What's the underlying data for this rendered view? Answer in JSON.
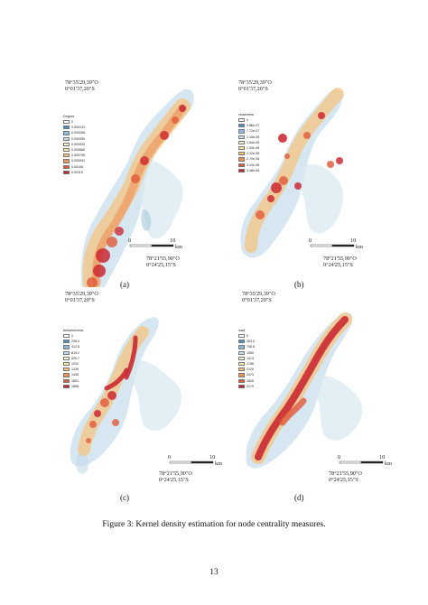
{
  "panels": [
    {
      "id": "a",
      "label": "(a)",
      "coord_top": [
        "78°35'29,39\"O",
        "0°01'37,20\"S"
      ],
      "coord_bottom": [
        "78°21'55,90\"O",
        "0°24'25,15\"S"
      ],
      "legend_title": "Degree",
      "legend_values": [
        "0",
        "0.000133",
        "0.000266",
        "0.000399",
        "0.000533",
        "0.000666",
        "0.000799",
        "0.000932",
        "0.00106",
        "0.00119"
      ],
      "scale": {
        "start": "0",
        "end": "10",
        "unit": "km"
      }
    },
    {
      "id": "b",
      "label": "(b)",
      "coord_top": [
        "78°35'29,39\"O",
        "0°01'37,20\"S"
      ],
      "coord_bottom": [
        "78°21'55,90\"O",
        "0°24'25,15\"S"
      ],
      "legend_title": "closeness",
      "legend_values": [
        "0",
        "3.86e-07",
        "7.72e-07",
        "1.16e-06",
        "1.54e-06",
        "1.93e-06",
        "2.32e-06",
        "2.70e-06",
        "3.10e-06",
        "3.48e-06"
      ],
      "scale": {
        "start": "0",
        "end": "10",
        "unit": "km"
      }
    },
    {
      "id": "c",
      "label": "(c)",
      "coord_top": [
        "78°35'29,39\"O",
        "0°01'37,20\"S"
      ],
      "coord_bottom": [
        "78°21'55,90\"O",
        "0°24'25,15\"S"
      ],
      "legend_title": "betweenness",
      "legend_values": [
        "0",
        "206.4",
        "412.8",
        "619.2",
        "825.7",
        "1032",
        "1239",
        "1445",
        "1651",
        "1858"
      ],
      "scale": {
        "start": "0",
        "end": "10",
        "unit": "km"
      }
    },
    {
      "id": "d",
      "label": "(d)",
      "coord_top": [
        "78°35'29,39\"O",
        "0°01'37,20\"S"
      ],
      "coord_bottom": [
        "78°21'55,90\"O",
        "0°24'25,15\"S"
      ],
      "legend_title": "load",
      "legend_values": [
        "0",
        "353.3",
        "706.6",
        "1060",
        "1413",
        "1766",
        "2120",
        "2473",
        "2826",
        "3179"
      ],
      "scale": {
        "start": "0",
        "end": "10",
        "unit": "km"
      }
    }
  ],
  "legend_colors": [
    "#ffffff",
    "#4a8fc4",
    "#8bbbd9",
    "#c8e0ec",
    "#eef3d2",
    "#fbe7a2",
    "#f6c27a",
    "#ef9055",
    "#e05a3a",
    "#c8202a"
  ],
  "caption": "Figure 3: Kernel density estimation for node centrality measures.",
  "page_number": "13"
}
